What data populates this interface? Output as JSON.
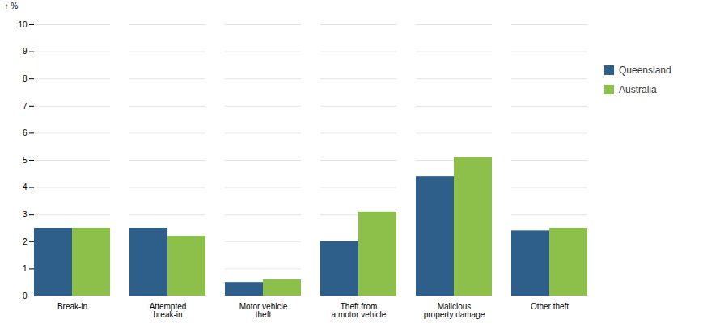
{
  "chart_data": {
    "type": "bar",
    "categories": [
      "Break-in",
      "Attempted\nbreak-in",
      "Motor vehicle\ntheft",
      "Theft from\na motor vehicle",
      "Malicious\nproperty damage",
      "Other theft"
    ],
    "series": [
      {
        "name": "Queensland",
        "color": "#2E5F8A",
        "values": [
          2.5,
          2.5,
          0.5,
          2.0,
          4.4,
          2.4
        ]
      },
      {
        "name": "Australia",
        "color": "#8DC04A",
        "values": [
          2.5,
          2.2,
          0.6,
          3.1,
          5.1,
          2.5
        ]
      }
    ],
    "ylabel": "%",
    "ylim": [
      0,
      10
    ],
    "yticks": [
      0,
      1,
      2,
      3,
      4,
      5,
      6,
      7,
      8,
      9,
      10
    ],
    "grid": true,
    "legend": "right"
  }
}
